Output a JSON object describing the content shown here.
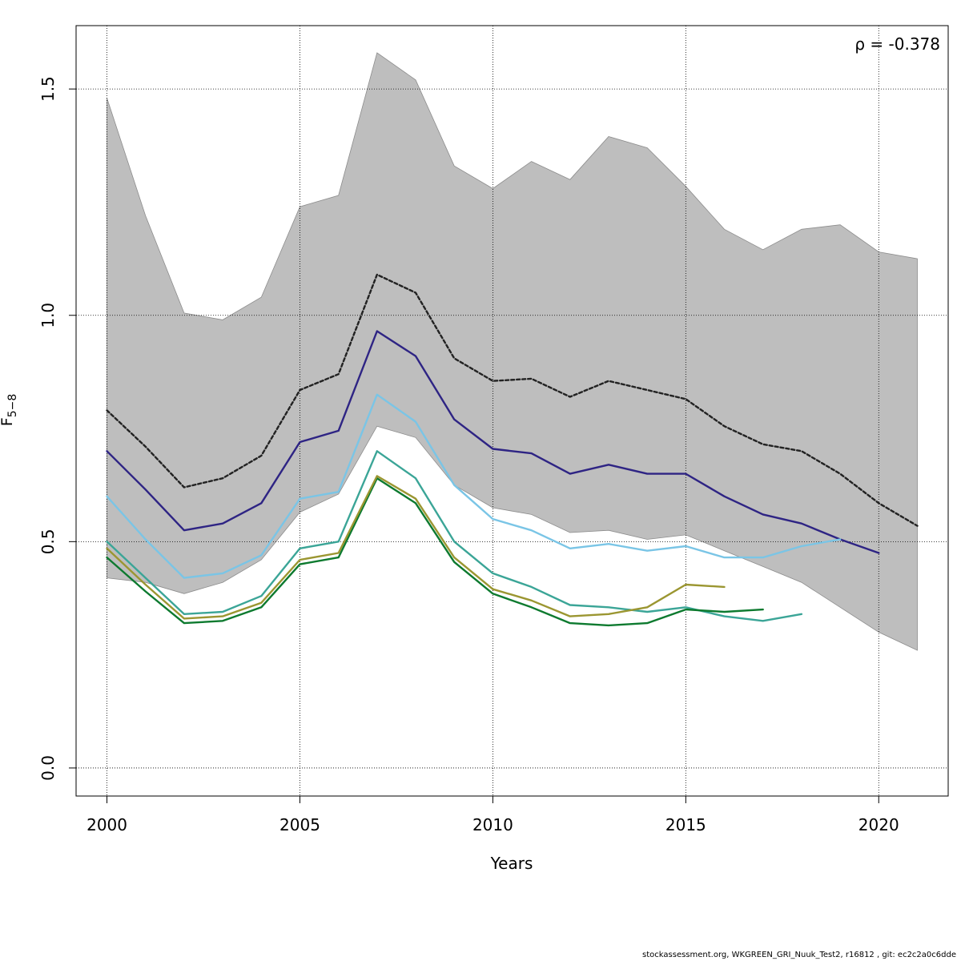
{
  "chart_data": {
    "type": "line",
    "xlabel": "Years",
    "ylabel_main": "F",
    "ylabel_sub": "5−8",
    "annotation": "ρ = -0.378",
    "xlim": [
      1999.2,
      2021.8
    ],
    "ylim": [
      -0.062,
      1.64
    ],
    "x_ticks": [
      2000,
      2005,
      2010,
      2015,
      2020
    ],
    "y_ticks": [
      0.0,
      0.5,
      1.0,
      1.5
    ],
    "y_tick_labels": [
      "0.0",
      "0.5",
      "1.0",
      "1.5"
    ],
    "grid": true,
    "confidence_band": {
      "years": [
        2000,
        2001,
        2002,
        2003,
        2004,
        2005,
        2006,
        2007,
        2008,
        2009,
        2010,
        2011,
        2012,
        2013,
        2014,
        2015,
        2016,
        2017,
        2018,
        2019,
        2020,
        2021
      ],
      "upper": [
        1.48,
        1.22,
        1.005,
        0.99,
        1.04,
        1.24,
        1.265,
        1.58,
        1.52,
        1.33,
        1.28,
        1.34,
        1.3,
        1.395,
        1.37,
        1.285,
        1.19,
        1.145,
        1.19,
        1.2,
        1.14,
        1.125
      ],
      "lower": [
        0.42,
        0.41,
        0.385,
        0.41,
        0.46,
        0.565,
        0.605,
        0.755,
        0.73,
        0.625,
        0.575,
        0.56,
        0.52,
        0.525,
        0.505,
        0.515,
        0.48,
        0.445,
        0.41,
        0.355,
        0.3,
        0.26
      ],
      "color": "#bebebe"
    },
    "series": [
      {
        "color": "#222222",
        "dashed": true,
        "start": 2000,
        "values": [
          0.79,
          0.71,
          0.62,
          0.64,
          0.69,
          0.835,
          0.87,
          1.09,
          1.05,
          0.905,
          0.855,
          0.86,
          0.82,
          0.855,
          0.835,
          0.815,
          0.755,
          0.715,
          0.7,
          0.65,
          0.585,
          0.535
        ]
      },
      {
        "color": "#2e2484",
        "dashed": false,
        "start": 2000,
        "values": [
          0.7,
          0.615,
          0.525,
          0.54,
          0.585,
          0.72,
          0.745,
          0.965,
          0.91,
          0.77,
          0.705,
          0.695,
          0.65,
          0.67,
          0.65,
          0.65,
          0.6,
          0.56,
          0.54,
          0.505,
          0.475
        ]
      },
      {
        "color": "#7ac5e6",
        "dashed": false,
        "start": 2000,
        "values": [
          0.6,
          0.505,
          0.42,
          0.43,
          0.47,
          0.595,
          0.61,
          0.825,
          0.765,
          0.625,
          0.55,
          0.525,
          0.485,
          0.495,
          0.48,
          0.49,
          0.465,
          0.465,
          0.49,
          0.505
        ]
      },
      {
        "color": "#3ba597",
        "dashed": false,
        "start": 2000,
        "values": [
          0.5,
          0.42,
          0.34,
          0.345,
          0.38,
          0.485,
          0.5,
          0.7,
          0.64,
          0.5,
          0.43,
          0.4,
          0.36,
          0.355,
          0.345,
          0.355,
          0.335,
          0.325,
          0.34
        ]
      },
      {
        "color": "#0d7a2f",
        "dashed": false,
        "start": 2000,
        "values": [
          0.465,
          0.39,
          0.32,
          0.325,
          0.355,
          0.45,
          0.465,
          0.64,
          0.585,
          0.455,
          0.385,
          0.355,
          0.32,
          0.315,
          0.32,
          0.35,
          0.345,
          0.35
        ]
      },
      {
        "color": "#9b9631",
        "dashed": false,
        "start": 2000,
        "values": [
          0.485,
          0.405,
          0.33,
          0.335,
          0.365,
          0.46,
          0.475,
          0.645,
          0.595,
          0.465,
          0.395,
          0.37,
          0.335,
          0.34,
          0.355,
          0.405,
          0.4
        ]
      }
    ]
  },
  "footer": "stockassessment.org, WKGREEN_GRI_Nuuk_Test2, r16812 , git: ec2c2a0c6dde"
}
